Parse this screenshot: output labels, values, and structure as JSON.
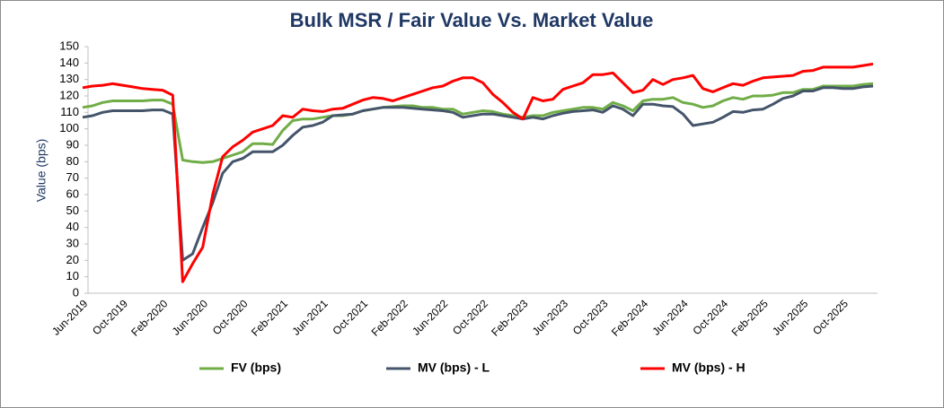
{
  "chart_data": {
    "type": "line",
    "title": "Bulk MSR / Fair Value Vs. Market Value",
    "y_label": "Value (bps)",
    "categories": [
      "Jun-2019",
      null,
      null,
      null,
      "Oct-2019",
      null,
      null,
      null,
      "Feb-2020",
      null,
      null,
      null,
      "Jun-2020",
      null,
      null,
      null,
      "Oct-2020",
      null,
      null,
      null,
      "Feb-2021",
      null,
      null,
      null,
      "Jun-2021",
      null,
      null,
      null,
      "Oct-2021",
      null,
      null,
      null,
      "Feb-2022",
      null,
      null,
      null,
      "Jun-2022",
      null,
      null,
      null,
      "Oct-2022",
      null,
      null,
      null,
      "Feb-2023",
      null,
      null,
      null,
      "Jun-2023",
      null,
      null,
      null,
      "Oct-2023",
      null,
      null,
      null,
      "Feb-2024",
      null,
      null,
      null,
      "Jun-2024",
      null,
      null,
      null,
      "Oct-2024",
      null,
      null,
      null,
      "Feb-2025",
      null,
      null,
      null,
      "Jun-2025",
      null,
      null,
      null,
      "Oct-2025",
      null,
      null,
      null
    ],
    "series": [
      {
        "name": "FV (bps)",
        "color": "#70ad47",
        "values": [
          113,
          114,
          116,
          117,
          117,
          117,
          117,
          117.5,
          117.5,
          115,
          81,
          80,
          79.5,
          80,
          82,
          84,
          86,
          91,
          91,
          90.5,
          99,
          105,
          106,
          106,
          107,
          108,
          108,
          109,
          111,
          112,
          113,
          113.5,
          114,
          114,
          113,
          113,
          112,
          112,
          109,
          110,
          111,
          110.5,
          109,
          108,
          107,
          108,
          108,
          110,
          111,
          112,
          113,
          113,
          112,
          116,
          114,
          111,
          117,
          118,
          118,
          119,
          116,
          115,
          113,
          114,
          117,
          119,
          118,
          120,
          120,
          120.5,
          122,
          122,
          124,
          124,
          126,
          126,
          126,
          126,
          127,
          127.5
        ]
      },
      {
        "name": "MV (bps) - L",
        "color": "#44546a",
        "values": [
          107,
          108,
          110,
          111,
          111,
          111,
          111,
          111.5,
          111.5,
          109,
          20,
          24,
          40,
          55,
          73,
          80,
          82,
          86,
          86,
          86,
          90,
          96,
          101,
          102,
          104,
          108,
          108.5,
          109,
          111,
          112,
          113,
          113,
          113,
          112.5,
          112,
          111.5,
          111,
          110,
          107,
          108,
          109,
          109,
          108,
          107,
          106,
          107,
          106,
          108,
          109.5,
          110.5,
          111,
          111.5,
          110,
          114,
          112,
          108,
          115,
          115,
          114,
          113.5,
          109,
          102,
          103,
          104,
          107,
          110.5,
          110,
          111.5,
          112,
          115,
          118.5,
          120,
          123,
          123,
          125,
          125,
          124.5,
          124.5,
          125.5,
          126
        ]
      },
      {
        "name": "MV (bps) - H",
        "color": "#ff0000",
        "values": [
          125,
          126,
          126.5,
          127.5,
          126.5,
          125.5,
          124.5,
          124,
          123.5,
          120.5,
          7,
          18,
          28,
          60,
          83,
          89,
          93,
          98,
          100,
          102,
          108,
          107,
          112,
          111,
          110.5,
          112,
          112.5,
          115,
          117.5,
          119,
          118.5,
          117,
          119,
          121,
          123,
          125,
          126,
          129,
          131,
          131,
          128,
          121,
          116,
          110,
          106,
          119,
          117,
          118,
          124,
          126,
          128,
          133,
          133,
          134,
          128,
          122,
          123.5,
          130,
          127,
          130,
          131,
          132.5,
          124.5,
          122.5,
          125,
          127.5,
          126.5,
          129,
          131,
          131.5,
          132,
          132.5,
          135,
          135.5,
          137.5,
          137.5,
          137.5,
          137.5,
          138.5,
          139.5
        ]
      }
    ],
    "ylim": [
      0,
      150
    ],
    "yticks": [
      0,
      10,
      20,
      30,
      40,
      50,
      60,
      70,
      80,
      90,
      100,
      110,
      120,
      130,
      140,
      150
    ],
    "grid": false,
    "legend": "bottom"
  }
}
